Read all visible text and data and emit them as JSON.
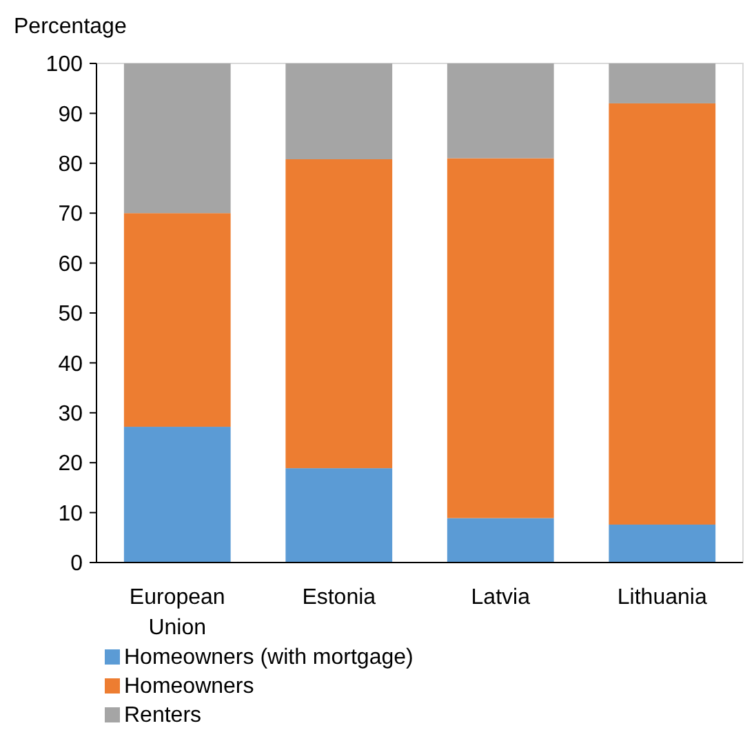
{
  "chart_data": {
    "type": "bar",
    "stacked": true,
    "ylabel": "Percentage",
    "categories": [
      "European Union",
      "Estonia",
      "Latvia",
      "Lithuania"
    ],
    "series": [
      {
        "name": "Homeowners (with mortgage)",
        "color": "#5b9bd5",
        "values": [
          27.2,
          18.9,
          8.9,
          7.6
        ]
      },
      {
        "name": "Homeowners",
        "color": "#ed7d31",
        "values": [
          42.8,
          61.9,
          72.1,
          84.4
        ]
      },
      {
        "name": "Renters",
        "color": "#a5a5a5",
        "values": [
          30,
          19.2,
          19,
          8
        ]
      }
    ],
    "ylim": [
      0,
      100
    ],
    "yticks": [
      0,
      10,
      20,
      30,
      40,
      50,
      60,
      70,
      80,
      90,
      100
    ],
    "legend": "bottom",
    "grid": false
  }
}
